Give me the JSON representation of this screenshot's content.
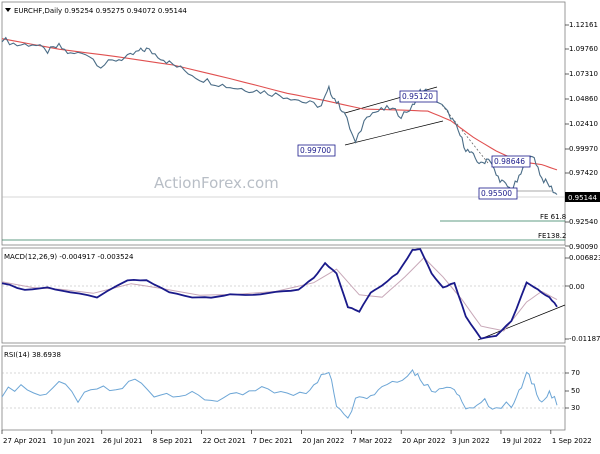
{
  "chart_data": [
    {
      "type": "line",
      "name": "price",
      "header": "EURCHF,Daily 0.95254 0.95275 0.94072 0.95144",
      "ylim": [
        0.9034,
        1.135
      ],
      "yticks": [
        "1.12161",
        "1.09760",
        "1.07310",
        "1.04860",
        "1.02410",
        "0.99970",
        "0.97420",
        "0.95144",
        "0.92540",
        "0.90090"
      ],
      "current_price": "0.95144",
      "price_series": [
        [
          0,
          1.1
        ],
        [
          4,
          1.094
        ],
        [
          8,
          1.095
        ],
        [
          12,
          1.088
        ],
        [
          15,
          1.093
        ],
        [
          18,
          1.085
        ],
        [
          22,
          1.087
        ],
        [
          26,
          1.074
        ],
        [
          30,
          1.08
        ],
        [
          33,
          1.082
        ],
        [
          36,
          1.088
        ],
        [
          38,
          1.09
        ],
        [
          41,
          1.084
        ],
        [
          44,
          1.077
        ],
        [
          48,
          1.07
        ],
        [
          52,
          1.062
        ],
        [
          56,
          1.058
        ],
        [
          60,
          1.054
        ],
        [
          64,
          1.052
        ],
        [
          68,
          1.05
        ],
        [
          72,
          1.047
        ],
        [
          76,
          1.044
        ],
        [
          80,
          1.039
        ],
        [
          84,
          1.036
        ],
        [
          86,
          1.052
        ],
        [
          88,
          1.04
        ],
        [
          90,
          1.03
        ],
        [
          93,
          1.0
        ],
        [
          96,
          1.028
        ],
        [
          99,
          1.031
        ],
        [
          102,
          1.034
        ],
        [
          105,
          1.027
        ],
        [
          108,
          1.035
        ],
        [
          110,
          1.05
        ],
        [
          112,
          1.05
        ],
        [
          115,
          1.039
        ],
        [
          118,
          1.026
        ],
        [
          120,
          1.012
        ],
        [
          122,
          0.995
        ],
        [
          124,
          0.988
        ],
        [
          126,
          0.98
        ],
        [
          128,
          0.987
        ],
        [
          130,
          0.97
        ],
        [
          132,
          0.962
        ],
        [
          134,
          0.956
        ],
        [
          136,
          0.967
        ],
        [
          138,
          0.984
        ],
        [
          140,
          0.987
        ],
        [
          142,
          0.967
        ],
        [
          144,
          0.96
        ],
        [
          146,
          0.951
        ]
      ],
      "ma_series": [
        [
          0,
          1.1
        ],
        [
          15,
          1.09
        ],
        [
          30,
          1.083
        ],
        [
          45,
          1.075
        ],
        [
          60,
          1.062
        ],
        [
          75,
          1.048
        ],
        [
          85,
          1.041
        ],
        [
          95,
          1.033
        ],
        [
          105,
          1.032
        ],
        [
          112,
          1.031
        ],
        [
          118,
          1.022
        ],
        [
          124,
          1.006
        ],
        [
          130,
          0.993
        ],
        [
          136,
          0.983
        ],
        [
          142,
          0.98
        ],
        [
          146,
          0.975
        ]
      ],
      "annotations": [
        "0.99700",
        "0.95120",
        "0.98646",
        "0.95500",
        "FE 61.8",
        "FE138.2"
      ],
      "watermark": "ActionForex.com"
    },
    {
      "type": "line",
      "name": "MACD",
      "header": "MACD(12,26,9) -0.004917 -0.003524",
      "ylim": [
        -0.0125,
        0.0072
      ],
      "yticks": [
        "0.006823",
        "0.00",
        "-0.011874"
      ],
      "series": [
        {
          "name": "macd",
          "values": [
            [
              0,
              0.0
            ],
            [
              6,
              -0.0015
            ],
            [
              12,
              -0.001
            ],
            [
              18,
              -0.002
            ],
            [
              25,
              -0.003
            ],
            [
              33,
              0.0005
            ],
            [
              38,
              0.0005
            ],
            [
              44,
              -0.002
            ],
            [
              50,
              -0.003
            ],
            [
              55,
              -0.003
            ],
            [
              60,
              -0.0025
            ],
            [
              66,
              -0.0025
            ],
            [
              72,
              -0.002
            ],
            [
              78,
              -0.0015
            ],
            [
              82,
              0.001
            ],
            [
              85,
              0.004
            ],
            [
              88,
              0.002
            ],
            [
              91,
              -0.005
            ],
            [
              94,
              -0.006
            ],
            [
              97,
              -0.002
            ],
            [
              100,
              -0.0005
            ],
            [
              104,
              0.002
            ],
            [
              108,
              0.0068
            ],
            [
              110,
              0.007
            ],
            [
              113,
              0.002
            ],
            [
              116,
              -0.001
            ],
            [
              119,
              0.0
            ],
            [
              122,
              -0.007
            ],
            [
              126,
              -0.0115
            ],
            [
              130,
              -0.011
            ],
            [
              134,
              -0.008
            ],
            [
              138,
              0.0
            ],
            [
              141,
              -0.0015
            ],
            [
              144,
              -0.003
            ],
            [
              146,
              -0.0049
            ]
          ]
        },
        {
          "name": "signal",
          "values": [
            [
              0,
              0.0002
            ],
            [
              8,
              -0.001
            ],
            [
              16,
              -0.0014
            ],
            [
              24,
              -0.0022
            ],
            [
              34,
              -0.0002
            ],
            [
              42,
              -0.0012
            ],
            [
              52,
              -0.0026
            ],
            [
              62,
              -0.0024
            ],
            [
              72,
              -0.0018
            ],
            [
              82,
              0.0
            ],
            [
              88,
              0.0028
            ],
            [
              94,
              -0.0025
            ],
            [
              100,
              -0.003
            ],
            [
              106,
              0.0012
            ],
            [
              111,
              0.0052
            ],
            [
              116,
              0.0012
            ],
            [
              121,
              -0.0035
            ],
            [
              126,
              -0.009
            ],
            [
              132,
              -0.01
            ],
            [
              138,
              -0.004
            ],
            [
              142,
              -0.0018
            ],
            [
              146,
              -0.0035
            ]
          ]
        }
      ]
    },
    {
      "type": "line",
      "name": "RSI",
      "header": "RSI(14) 38.6938",
      "ylim": [
        15,
        90
      ],
      "yticks": [
        "70",
        "50",
        "30"
      ],
      "levels": [
        70,
        30
      ],
      "values": [
        [
          0,
          48
        ],
        [
          5,
          55
        ],
        [
          10,
          45
        ],
        [
          15,
          58
        ],
        [
          20,
          42
        ],
        [
          25,
          52
        ],
        [
          30,
          50
        ],
        [
          35,
          60
        ],
        [
          40,
          47
        ],
        [
          45,
          48
        ],
        [
          50,
          46
        ],
        [
          55,
          42
        ],
        [
          60,
          44
        ],
        [
          65,
          48
        ],
        [
          70,
          52
        ],
        [
          75,
          46
        ],
        [
          80,
          50
        ],
        [
          83,
          60
        ],
        [
          86,
          67
        ],
        [
          88,
          38
        ],
        [
          91,
          28
        ],
        [
          94,
          48
        ],
        [
          97,
          45
        ],
        [
          100,
          55
        ],
        [
          104,
          60
        ],
        [
          108,
          68
        ],
        [
          110,
          62
        ],
        [
          113,
          50
        ],
        [
          116,
          55
        ],
        [
          119,
          52
        ],
        [
          121,
          38
        ],
        [
          124,
          33
        ],
        [
          127,
          40
        ],
        [
          130,
          35
        ],
        [
          134,
          38
        ],
        [
          136,
          48
        ],
        [
          138,
          65
        ],
        [
          140,
          55
        ],
        [
          142,
          40
        ],
        [
          144,
          47
        ],
        [
          146,
          38.7
        ]
      ]
    }
  ],
  "x_axis_labels": [
    "27 Apr 2021",
    "10 Jun 2021",
    "26 Jul 2021",
    "8 Sep 2021",
    "22 Oct 2021",
    "7 Dec 2021",
    "20 Jan 2022",
    "7 Mar 2022",
    "20 Apr 2022",
    "3 Jun 2022",
    "19 Jul 2022",
    "1 Sep 2022"
  ],
  "x_axis_index": [
    0,
    22,
    44,
    66,
    88,
    110,
    132,
    154,
    176,
    198,
    220,
    242
  ],
  "x_axis_total": 250,
  "colors": {
    "price": "#4a6c86",
    "ma": "#e05050",
    "macd": "#1a1a8a",
    "signal": "#c8a8b8",
    "rsi": "#6da6d6",
    "box": "#1a1a8a",
    "fe": "#2e7d5b"
  }
}
